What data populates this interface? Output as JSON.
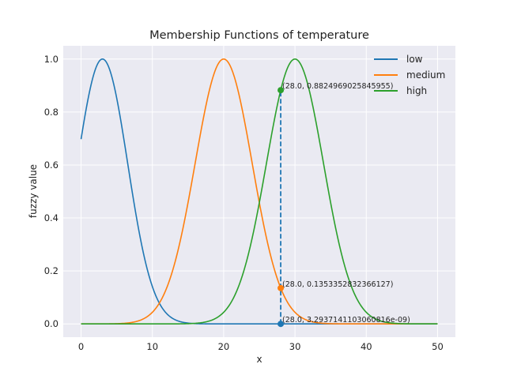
{
  "chart_data": {
    "type": "line",
    "title": "Membership Functions of temperature",
    "xlabel": "x",
    "ylabel": "fuzzy value",
    "xlim": [
      -2.5,
      52.5
    ],
    "ylim": [
      -0.05,
      1.05
    ],
    "xticks": [
      "0",
      "10",
      "20",
      "30",
      "40",
      "50"
    ],
    "yticks": [
      "0.0",
      "0.2",
      "0.4",
      "0.6",
      "0.8",
      "1.0"
    ],
    "grid": true,
    "legend_position": "top-right",
    "x_range": [
      0,
      50
    ],
    "series": [
      {
        "name": "low",
        "shape": "gaussian",
        "center": 3,
        "sigma": 3.535,
        "color": "#1f77b4"
      },
      {
        "name": "medium",
        "shape": "gaussian",
        "center": 20,
        "sigma": 4,
        "color": "#ff7f0e"
      },
      {
        "name": "high",
        "shape": "gaussian",
        "center": 30,
        "sigma": 4,
        "color": "#2ca02c"
      }
    ],
    "vertical_marker": {
      "x": 28.0,
      "from": 0,
      "to": 0.8824969025845955,
      "color": "#1f77b4",
      "style": "dashed"
    },
    "markers": [
      {
        "series": "high",
        "x": 28.0,
        "y": 0.8824969025845955,
        "label": "(28.0, 0.8824969025845955)",
        "color": "#2ca02c"
      },
      {
        "series": "medium",
        "x": 28.0,
        "y": 0.1353352832366127,
        "label": "(28.0, 0.1353352832366127)",
        "color": "#ff7f0e"
      },
      {
        "series": "low",
        "x": 28.0,
        "y": 0.0,
        "label": "(28.0, 3.2937141103060816e-09)",
        "color": "#1f77b4"
      }
    ]
  }
}
